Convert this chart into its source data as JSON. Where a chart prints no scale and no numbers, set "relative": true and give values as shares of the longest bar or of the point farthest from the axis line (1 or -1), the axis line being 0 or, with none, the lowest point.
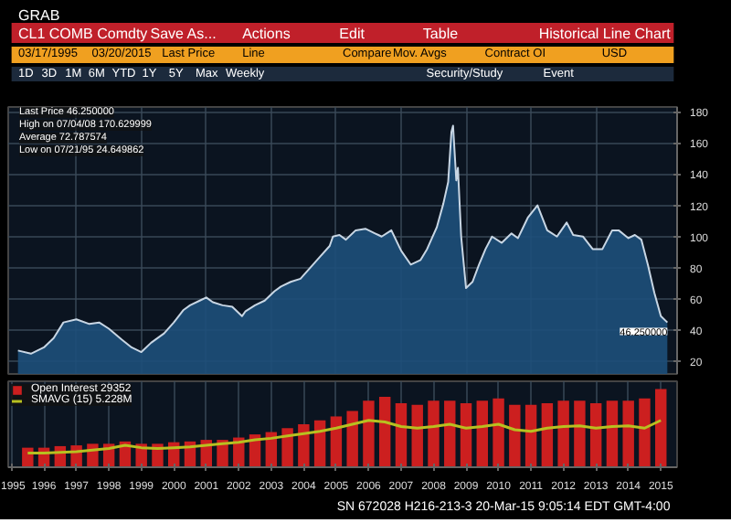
{
  "chart_data": [
    {
      "type": "area",
      "title": "Historical Line Chart",
      "annotations": [
        "GRAB",
        "CL1 COMB Comdty",
        "Save As...",
        "Actions",
        "Edit",
        "Table",
        "03/17/1995",
        "03/20/2015",
        "Last Price",
        "Line",
        "Compare",
        "Mov. Avgs",
        "Contract OI",
        "USD",
        "1D",
        "3D",
        "1M",
        "6M",
        "YTD",
        "1Y",
        "5Y",
        "Max",
        "Weekly",
        "Security/Study",
        "Event",
        "Last Price 46.250000",
        "High on 07/04/08 170.629999",
        "Average 72.787574",
        "Low on 07/21/95 24.649862",
        {
          "text": "46.250000",
          "x": 2015.2,
          "y": 46.25
        }
      ],
      "x": [
        1995.2,
        1995.6,
        1996.0,
        1996.3,
        1996.6,
        1997.0,
        1997.4,
        1997.7,
        1998.0,
        1998.4,
        1998.7,
        1999.0,
        1999.3,
        1999.7,
        2000.0,
        2000.3,
        2000.5,
        2000.8,
        2001.0,
        2001.2,
        2001.5,
        2001.8,
        2002.1,
        2002.2,
        2002.5,
        2002.8,
        2003.1,
        2003.3,
        2003.6,
        2003.9,
        2004.2,
        2004.5,
        2004.8,
        2004.9,
        2005.1,
        2005.3,
        2005.6,
        2005.9,
        2006.2,
        2006.3,
        2006.4,
        2006.7,
        2007.0,
        2007.3,
        2007.6,
        2007.8,
        2008.1,
        2008.3,
        2008.45,
        2008.55,
        2008.6,
        2008.7,
        2008.75,
        2008.85,
        2009.0,
        2009.2,
        2009.4,
        2009.6,
        2009.8,
        2010.1,
        2010.4,
        2010.6,
        2010.9,
        2011.2,
        2011.5,
        2011.8,
        2012.1,
        2012.3,
        2012.6,
        2012.9,
        2013.2,
        2013.5,
        2013.7,
        2014.0,
        2014.2,
        2014.4,
        2014.6,
        2014.8,
        2015.0,
        2015.2
      ],
      "series": [
        {
          "color": "#1d4f7a",
          "values": [
            27,
            25,
            29,
            35,
            45,
            47,
            44,
            45,
            41,
            34,
            29,
            26,
            32,
            38,
            45,
            53,
            56,
            59,
            61,
            58,
            56,
            55,
            49,
            52,
            56,
            59,
            65,
            68,
            71,
            73,
            80,
            87,
            94,
            100,
            101,
            98,
            104,
            105,
            102,
            101,
            100,
            104,
            91,
            82,
            85,
            92,
            106,
            121,
            135,
            167,
            171,
            136,
            144,
            100,
            67,
            71,
            82,
            92,
            100,
            96,
            102,
            99,
            112,
            120,
            104,
            100,
            109,
            101,
            100,
            92,
            92,
            104,
            104,
            99,
            101,
            98,
            82,
            64,
            49,
            45
          ]
        }
      ],
      "xlim": [
        1994.9,
        2015.5
      ],
      "ylim": [
        12,
        183
      ],
      "xticks": [
        {
          "value": 1997,
          "label": null
        },
        {
          "value": 1999,
          "label": null
        },
        {
          "value": 2001,
          "label": null
        },
        {
          "value": 2003,
          "label": null
        },
        {
          "value": 2005,
          "label": null
        },
        {
          "value": 2007,
          "label": null
        },
        {
          "value": 2009,
          "label": null
        },
        {
          "value": 2011,
          "label": null
        },
        {
          "value": 2013,
          "label": null
        }
      ],
      "yticks": [
        20,
        40,
        60,
        80,
        100,
        120,
        140,
        160,
        180
      ],
      "tick_labels": "y",
      "grid": true
    },
    {
      "type": "bar",
      "relative": true,
      "annotations": [
        "SN 672028 H216-213-3 20-Mar-15 9:05:14 EDT GMT-4:00"
      ],
      "x": [
        1995.5,
        1996.0,
        1996.5,
        1997.0,
        1997.5,
        1998.0,
        1998.5,
        1999.0,
        1999.5,
        2000.0,
        2000.5,
        2001.0,
        2001.5,
        2002.0,
        2002.5,
        2003.0,
        2003.5,
        2004.0,
        2004.5,
        2005.0,
        2005.5,
        2006.0,
        2006.5,
        2007.0,
        2007.5,
        2008.0,
        2008.5,
        2009.0,
        2009.5,
        2010.0,
        2010.5,
        2011.0,
        2011.5,
        2012.0,
        2012.5,
        2013.0,
        2013.5,
        2014.0,
        2014.5,
        2015.0
      ],
      "series": [
        {
          "name": "Open Interest 29352",
          "color": "#cc1f1f",
          "values": [
            0.25,
            0.25,
            0.27,
            0.28,
            0.3,
            0.3,
            0.33,
            0.3,
            0.3,
            0.32,
            0.33,
            0.35,
            0.35,
            0.38,
            0.42,
            0.45,
            0.5,
            0.55,
            0.6,
            0.65,
            0.72,
            0.85,
            0.9,
            0.82,
            0.8,
            0.85,
            0.85,
            0.82,
            0.85,
            0.88,
            0.8,
            0.8,
            0.82,
            0.85,
            0.85,
            0.82,
            0.85,
            0.85,
            0.88,
            1.0
          ]
        },
        {
          "name": "SMAVG (15) 5.228M",
          "type": "line",
          "color": "#b8c020",
          "values": [
            0.18,
            0.18,
            0.19,
            0.2,
            0.22,
            0.24,
            0.28,
            0.25,
            0.24,
            0.25,
            0.26,
            0.28,
            0.3,
            0.32,
            0.35,
            0.37,
            0.4,
            0.43,
            0.46,
            0.5,
            0.55,
            0.6,
            0.58,
            0.52,
            0.5,
            0.52,
            0.55,
            0.5,
            0.52,
            0.55,
            0.48,
            0.46,
            0.5,
            0.52,
            0.53,
            0.5,
            0.52,
            0.53,
            0.5,
            0.6
          ]
        }
      ],
      "xlim": [
        1994.9,
        2015.5
      ],
      "xticks": [
        1995,
        1996,
        1997,
        1998,
        1999,
        2000,
        2001,
        2002,
        2003,
        2004,
        2005,
        2006,
        2007,
        2008,
        2009,
        2010,
        2011,
        2012,
        2013,
        2014,
        2015
      ],
      "tick_labels": "x",
      "grid": "x",
      "legend": "top left"
    }
  ]
}
